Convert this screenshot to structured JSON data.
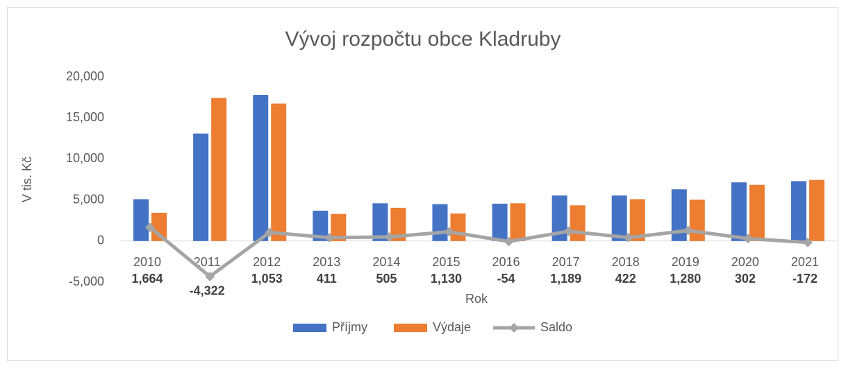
{
  "chart_data": {
    "type": "bar_line",
    "title": "Vývoj rozpočtu obce Kladruby",
    "x_label": "Rok",
    "y_label": "V tis. Kč",
    "categories": [
      "2010",
      "2011",
      "2012",
      "2013",
      "2014",
      "2015",
      "2016",
      "2017",
      "2018",
      "2019",
      "2020",
      "2021"
    ],
    "series": [
      {
        "name": "Příjmy",
        "type": "bar",
        "color": "#4472c4",
        "values": [
          5100,
          13100,
          17800,
          3700,
          4600,
          4500,
          4550,
          5550,
          5550,
          6300,
          7150,
          7300
        ]
      },
      {
        "name": "Výdaje",
        "type": "bar",
        "color": "#ed7d31",
        "values": [
          3450,
          17450,
          16750,
          3300,
          4050,
          3350,
          4600,
          4350,
          5100,
          5050,
          6850,
          7450
        ]
      },
      {
        "name": "Saldo",
        "type": "line",
        "color": "#a5a5a5",
        "values": [
          1664,
          -4322,
          1053,
          411,
          505,
          1130,
          -54,
          1189,
          422,
          1280,
          302,
          -172
        ],
        "value_labels": [
          "1,664",
          "-4,322",
          "1,053",
          "411",
          "505",
          "1,130",
          "-54",
          "1,189",
          "422",
          "1,280",
          "302",
          "-172"
        ]
      }
    ],
    "ylim": [
      -5000,
      20000
    ],
    "yticks": [
      {
        "value": -5000,
        "label": "-5,000"
      },
      0,
      {
        "value": 5000,
        "label": "5,000"
      },
      {
        "value": 10000,
        "label": "10,000"
      },
      {
        "value": 15000,
        "label": "15,000"
      },
      {
        "value": 20000,
        "label": "20,000"
      }
    ],
    "grid": false,
    "legend": "bottom"
  }
}
